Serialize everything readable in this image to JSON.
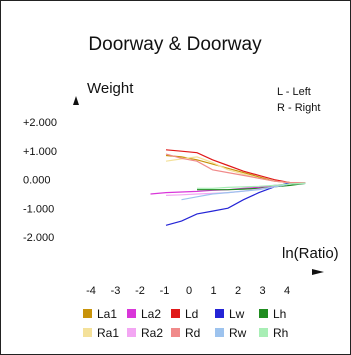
{
  "chart_data": {
    "type": "line",
    "title": "Doorway & Doorway",
    "ylabel": "Weight",
    "xlabel": "ln(Ratio)",
    "notes": [
      "L - Left",
      "R - Right"
    ],
    "yticks": [
      "+2.000",
      "+1.000",
      "0.000",
      "-1.000",
      "-2.000"
    ],
    "xticks": [
      "-4",
      "-3",
      "-2",
      "-1",
      "0",
      "1",
      "2",
      "3",
      "4"
    ],
    "xlim": [
      -4,
      4
    ],
    "ylim": [
      -2,
      2
    ],
    "grid": false,
    "legend_position": "bottom",
    "series": [
      {
        "name": "La1",
        "color": "#c8930a",
        "x": [
          -2,
          -1.5,
          -1,
          -0.5,
          0,
          0.5,
          1,
          1.5,
          2,
          2.5
        ],
        "y": [
          1.0,
          0.95,
          0.85,
          0.7,
          0.55,
          0.4,
          0.25,
          0.1,
          0.05,
          0.05
        ]
      },
      {
        "name": "La2",
        "color": "#d936d9",
        "x": [
          -2.5,
          -2,
          -1.5,
          -1,
          -0.5,
          0,
          0.5,
          1,
          1.5,
          2,
          2.5
        ],
        "y": [
          -0.35,
          -0.3,
          -0.28,
          -0.26,
          -0.22,
          -0.2,
          -0.15,
          -0.12,
          -0.05,
          0.0,
          0.03
        ]
      },
      {
        "name": "Ld",
        "color": "#e01818",
        "x": [
          -2,
          -1.5,
          -1,
          -0.5,
          0,
          0.5,
          1,
          1.5,
          2,
          2.5
        ],
        "y": [
          1.2,
          1.15,
          1.1,
          0.85,
          0.65,
          0.45,
          0.3,
          0.15,
          0.05,
          0.05
        ]
      },
      {
        "name": "Lw",
        "color": "#2424d6",
        "x": [
          -2,
          -1.5,
          -1,
          -0.5,
          0,
          0.5,
          1,
          1.5,
          2,
          2.5
        ],
        "y": [
          -1.45,
          -1.3,
          -1.05,
          -0.95,
          -0.85,
          -0.55,
          -0.3,
          -0.1,
          0.05,
          0.02
        ]
      },
      {
        "name": "Lh",
        "color": "#1f8c1f",
        "x": [
          -1,
          -0.5,
          0,
          0.5,
          1,
          1.5,
          2,
          2.5
        ],
        "y": [
          -0.2,
          -0.2,
          -0.2,
          -0.18,
          -0.15,
          -0.1,
          -0.05,
          0.02
        ]
      },
      {
        "name": "Ra1",
        "color": "#f4e19a",
        "x": [
          -2,
          -1.5,
          -1,
          -0.5,
          0,
          0.5,
          1,
          1.5,
          2,
          2.5
        ],
        "y": [
          0.8,
          0.88,
          0.95,
          0.75,
          0.5,
          0.35,
          0.2,
          0.1,
          0.05,
          0.05
        ]
      },
      {
        "name": "Ra2",
        "color": "#f3a6f3",
        "x": [
          -2,
          -1.5,
          -1,
          -0.5,
          0,
          0.5,
          1,
          1.5,
          2,
          2.5
        ],
        "y": [
          -0.4,
          -0.38,
          -0.35,
          -0.33,
          -0.3,
          -0.25,
          -0.18,
          -0.1,
          0.0,
          0.03
        ]
      },
      {
        "name": "Rd",
        "color": "#f08a8a",
        "x": [
          -2,
          -1.5,
          -1,
          -0.5,
          0,
          0.5,
          1,
          1.5,
          2,
          2.5
        ],
        "y": [
          1.05,
          0.9,
          0.8,
          0.5,
          0.4,
          0.3,
          0.2,
          0.1,
          0.05,
          0.05
        ]
      },
      {
        "name": "Rw",
        "color": "#9dc3ee",
        "x": [
          -1.5,
          -1,
          -0.5,
          0,
          0.5,
          1,
          1.5,
          2,
          2.5
        ],
        "y": [
          -0.55,
          -0.45,
          -0.35,
          -0.3,
          -0.25,
          -0.2,
          -0.1,
          0.0,
          0.02
        ]
      },
      {
        "name": "Rh",
        "color": "#a8eeb5",
        "x": [
          -1,
          -0.5,
          0,
          0.5,
          1,
          1.5,
          2,
          2.5
        ],
        "y": [
          -0.15,
          -0.15,
          -0.12,
          -0.1,
          -0.08,
          -0.05,
          0.0,
          0.03
        ]
      }
    ]
  }
}
